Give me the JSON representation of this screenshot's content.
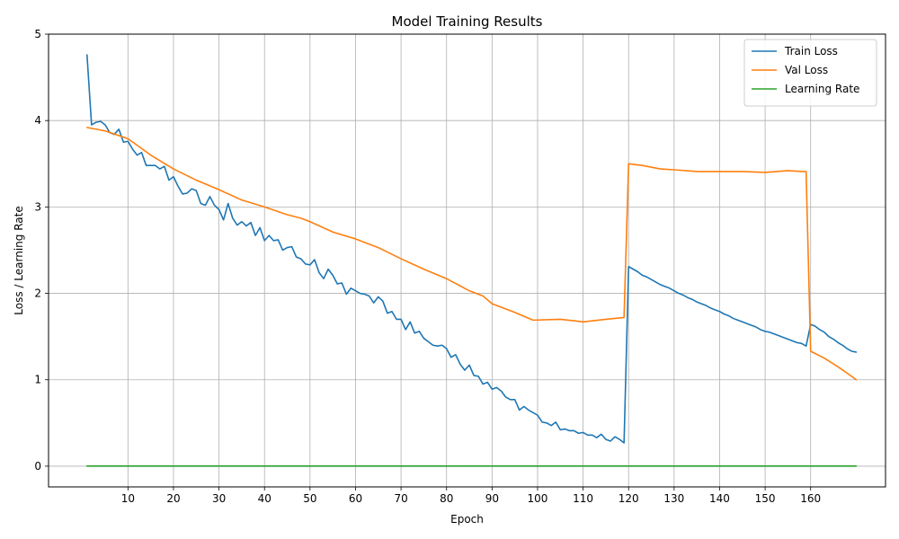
{
  "chart_data": {
    "type": "line",
    "title": "Model Training Results",
    "xlabel": "Epoch",
    "ylabel": "Loss / Learning Rate",
    "xlim": [
      -7.45,
      176.45
    ],
    "ylim": [
      -0.24,
      5.0
    ],
    "xticks": [
      10,
      20,
      30,
      40,
      50,
      60,
      70,
      80,
      90,
      100,
      110,
      120,
      130,
      140,
      150,
      160
    ],
    "yticks": [
      0,
      1,
      2,
      3,
      4,
      5
    ],
    "grid": true,
    "legend_position": "top-right",
    "series": [
      {
        "name": "Train Loss",
        "color": "#1f77b4",
        "points": [
          [
            1,
            4.76
          ],
          [
            2,
            3.95
          ],
          [
            3,
            3.98
          ],
          [
            4,
            3.99
          ],
          [
            5,
            3.95
          ],
          [
            6,
            3.86
          ],
          [
            7,
            3.84
          ],
          [
            8,
            3.9
          ],
          [
            9,
            3.75
          ],
          [
            10,
            3.76
          ],
          [
            11,
            3.67
          ],
          [
            12,
            3.6
          ],
          [
            13,
            3.63
          ],
          [
            14,
            3.48
          ],
          [
            15,
            3.48
          ],
          [
            16,
            3.48
          ],
          [
            17,
            3.44
          ],
          [
            18,
            3.47
          ],
          [
            19,
            3.31
          ],
          [
            20,
            3.35
          ],
          [
            21,
            3.24
          ],
          [
            22,
            3.15
          ],
          [
            23,
            3.16
          ],
          [
            24,
            3.21
          ],
          [
            25,
            3.19
          ],
          [
            26,
            3.04
          ],
          [
            27,
            3.02
          ],
          [
            28,
            3.12
          ],
          [
            29,
            3.02
          ],
          [
            30,
            2.97
          ],
          [
            31,
            2.85
          ],
          [
            32,
            3.04
          ],
          [
            33,
            2.87
          ],
          [
            34,
            2.79
          ],
          [
            35,
            2.83
          ],
          [
            36,
            2.78
          ],
          [
            37,
            2.82
          ],
          [
            38,
            2.67
          ],
          [
            39,
            2.76
          ],
          [
            40,
            2.61
          ],
          [
            41,
            2.67
          ],
          [
            42,
            2.61
          ],
          [
            43,
            2.62
          ],
          [
            44,
            2.5
          ],
          [
            45,
            2.53
          ],
          [
            46,
            2.54
          ],
          [
            47,
            2.42
          ],
          [
            48,
            2.4
          ],
          [
            49,
            2.34
          ],
          [
            50,
            2.33
          ],
          [
            51,
            2.39
          ],
          [
            52,
            2.24
          ],
          [
            53,
            2.17
          ],
          [
            54,
            2.28
          ],
          [
            55,
            2.21
          ],
          [
            56,
            2.11
          ],
          [
            57,
            2.12
          ],
          [
            58,
            1.99
          ],
          [
            59,
            2.06
          ],
          [
            60,
            2.03
          ],
          [
            61,
            2.0
          ],
          [
            62,
            1.99
          ],
          [
            63,
            1.97
          ],
          [
            64,
            1.89
          ],
          [
            65,
            1.96
          ],
          [
            66,
            1.91
          ],
          [
            67,
            1.77
          ],
          [
            68,
            1.79
          ],
          [
            69,
            1.7
          ],
          [
            70,
            1.7
          ],
          [
            71,
            1.58
          ],
          [
            72,
            1.67
          ],
          [
            73,
            1.54
          ],
          [
            74,
            1.56
          ],
          [
            75,
            1.48
          ],
          [
            76,
            1.44
          ],
          [
            77,
            1.4
          ],
          [
            78,
            1.39
          ],
          [
            79,
            1.4
          ],
          [
            80,
            1.36
          ],
          [
            81,
            1.26
          ],
          [
            82,
            1.29
          ],
          [
            83,
            1.18
          ],
          [
            84,
            1.11
          ],
          [
            85,
            1.17
          ],
          [
            86,
            1.05
          ],
          [
            87,
            1.04
          ],
          [
            88,
            0.95
          ],
          [
            89,
            0.97
          ],
          [
            90,
            0.89
          ],
          [
            91,
            0.91
          ],
          [
            92,
            0.87
          ],
          [
            93,
            0.8
          ],
          [
            94,
            0.77
          ],
          [
            95,
            0.77
          ],
          [
            96,
            0.65
          ],
          [
            97,
            0.69
          ],
          [
            98,
            0.65
          ],
          [
            99,
            0.62
          ],
          [
            100,
            0.59
          ],
          [
            101,
            0.51
          ],
          [
            102,
            0.5
          ],
          [
            103,
            0.47
          ],
          [
            104,
            0.51
          ],
          [
            105,
            0.42
          ],
          [
            106,
            0.43
          ],
          [
            107,
            0.41
          ],
          [
            108,
            0.41
          ],
          [
            109,
            0.38
          ],
          [
            110,
            0.39
          ],
          [
            111,
            0.36
          ],
          [
            112,
            0.36
          ],
          [
            113,
            0.33
          ],
          [
            114,
            0.37
          ],
          [
            115,
            0.31
          ],
          [
            116,
            0.29
          ],
          [
            117,
            0.34
          ],
          [
            118,
            0.31
          ],
          [
            119,
            0.27
          ],
          [
            120,
            2.31
          ],
          [
            121,
            2.28
          ],
          [
            122,
            2.25
          ],
          [
            123,
            2.21
          ],
          [
            124,
            2.19
          ],
          [
            125,
            2.16
          ],
          [
            126,
            2.13
          ],
          [
            127,
            2.1
          ],
          [
            128,
            2.08
          ],
          [
            129,
            2.06
          ],
          [
            130,
            2.03
          ],
          [
            131,
            2.0
          ],
          [
            132,
            1.98
          ],
          [
            133,
            1.95
          ],
          [
            134,
            1.93
          ],
          [
            135,
            1.9
          ],
          [
            136,
            1.88
          ],
          [
            137,
            1.86
          ],
          [
            138,
            1.83
          ],
          [
            139,
            1.81
          ],
          [
            140,
            1.79
          ],
          [
            141,
            1.76
          ],
          [
            142,
            1.74
          ],
          [
            143,
            1.71
          ],
          [
            144,
            1.69
          ],
          [
            145,
            1.67
          ],
          [
            146,
            1.65
          ],
          [
            147,
            1.63
          ],
          [
            148,
            1.61
          ],
          [
            149,
            1.58
          ],
          [
            150,
            1.56
          ],
          [
            151,
            1.55
          ],
          [
            152,
            1.53
          ],
          [
            153,
            1.51
          ],
          [
            154,
            1.49
          ],
          [
            155,
            1.47
          ],
          [
            156,
            1.45
          ],
          [
            157,
            1.43
          ],
          [
            158,
            1.42
          ],
          [
            159,
            1.39
          ],
          [
            160,
            1.64
          ],
          [
            161,
            1.62
          ],
          [
            162,
            1.58
          ],
          [
            163,
            1.55
          ],
          [
            164,
            1.5
          ],
          [
            165,
            1.47
          ],
          [
            166,
            1.43
          ],
          [
            167,
            1.4
          ],
          [
            168,
            1.36
          ],
          [
            169,
            1.33
          ],
          [
            170,
            1.32
          ]
        ]
      },
      {
        "name": "Val Loss",
        "color": "#ff7f0e",
        "points": [
          [
            1,
            3.92
          ],
          [
            5,
            3.88
          ],
          [
            10,
            3.79
          ],
          [
            15,
            3.6
          ],
          [
            20,
            3.44
          ],
          [
            25,
            3.31
          ],
          [
            30,
            3.2
          ],
          [
            35,
            3.08
          ],
          [
            40,
            3.0
          ],
          [
            45,
            2.91
          ],
          [
            48,
            2.87
          ],
          [
            50,
            2.83
          ],
          [
            55,
            2.71
          ],
          [
            60,
            2.63
          ],
          [
            65,
            2.53
          ],
          [
            70,
            2.4
          ],
          [
            75,
            2.28
          ],
          [
            80,
            2.17
          ],
          [
            85,
            2.03
          ],
          [
            88,
            1.97
          ],
          [
            90,
            1.88
          ],
          [
            95,
            1.78
          ],
          [
            99,
            1.69
          ],
          [
            105,
            1.7
          ],
          [
            110,
            1.67
          ],
          [
            115,
            1.7
          ],
          [
            119,
            1.72
          ],
          [
            120,
            3.5
          ],
          [
            123,
            3.48
          ],
          [
            127,
            3.44
          ],
          [
            130,
            3.43
          ],
          [
            135,
            3.41
          ],
          [
            140,
            3.41
          ],
          [
            145,
            3.41
          ],
          [
            150,
            3.4
          ],
          [
            155,
            3.42
          ],
          [
            158,
            3.41
          ],
          [
            159,
            3.41
          ],
          [
            160,
            1.33
          ],
          [
            163,
            1.25
          ],
          [
            166,
            1.15
          ],
          [
            169,
            1.04
          ],
          [
            170,
            1.0
          ]
        ]
      },
      {
        "name": "Learning Rate",
        "color": "#2ca02c",
        "points": [
          [
            1,
            0.001
          ],
          [
            170,
            0.001
          ]
        ]
      }
    ]
  }
}
